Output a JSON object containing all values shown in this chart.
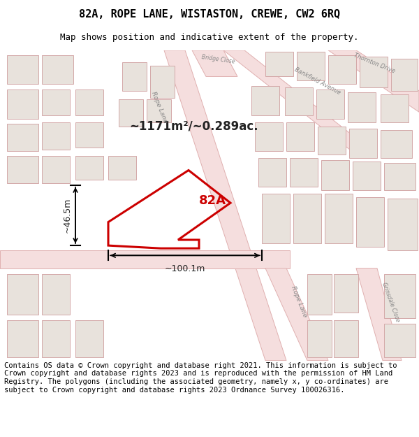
{
  "title": "82A, ROPE LANE, WISTASTON, CREWE, CW2 6RQ",
  "subtitle": "Map shows position and indicative extent of the property.",
  "footer": "Contains OS data © Crown copyright and database right 2021. This information is subject to Crown copyright and database rights 2023 and is reproduced with the permission of HM Land Registry. The polygons (including the associated geometry, namely x, y co-ordinates) are subject to Crown copyright and database rights 2023 Ordnance Survey 100026316.",
  "area_label": "~1171m²/~0.289ac.",
  "property_label": "82A",
  "dim_width": "~100.1m",
  "dim_height": "~46.5m",
  "map_bg": "#f8f5f2",
  "property_fill": "none",
  "property_edge": "#cc0000",
  "road_fill": "#f5dede",
  "road_edge": "#e0b0b0",
  "building_fill": "#e8e2dc",
  "building_edge": "#d4a8a8",
  "title_fontsize": 11,
  "subtitle_fontsize": 9,
  "footer_fontsize": 7.5,
  "road_label_fontsize": 6.5,
  "road_label_color": "#888888",
  "dim_fontsize": 9
}
